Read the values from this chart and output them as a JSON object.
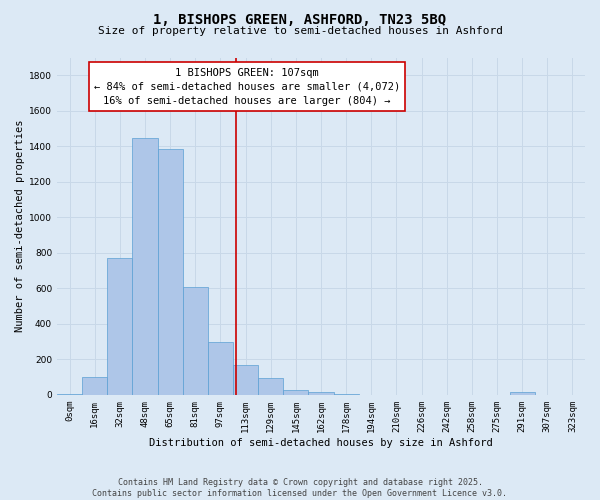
{
  "title": "1, BISHOPS GREEN, ASHFORD, TN23 5BQ",
  "subtitle": "Size of property relative to semi-detached houses in Ashford",
  "xlabel": "Distribution of semi-detached houses by size in Ashford",
  "ylabel": "Number of semi-detached properties",
  "categories": [
    "0sqm",
    "16sqm",
    "32sqm",
    "48sqm",
    "65sqm",
    "81sqm",
    "97sqm",
    "113sqm",
    "129sqm",
    "145sqm",
    "162sqm",
    "178sqm",
    "194sqm",
    "210sqm",
    "226sqm",
    "242sqm",
    "258sqm",
    "275sqm",
    "291sqm",
    "307sqm",
    "323sqm"
  ],
  "bar_values": [
    5,
    100,
    770,
    1445,
    1385,
    610,
    300,
    170,
    95,
    30,
    15,
    2,
    0,
    0,
    0,
    0,
    0,
    0,
    15,
    0,
    0
  ],
  "bar_color": "#aec6e8",
  "bar_edge_color": "#5a9fd4",
  "annotation_text": "1 BISHOPS GREEN: 107sqm\n← 84% of semi-detached houses are smaller (4,072)\n16% of semi-detached houses are larger (804) →",
  "vline_color": "#cc0000",
  "annotation_box_facecolor": "#ffffff",
  "annotation_box_edgecolor": "#cc0000",
  "ylim": [
    0,
    1900
  ],
  "yticks": [
    0,
    200,
    400,
    600,
    800,
    1000,
    1200,
    1400,
    1600,
    1800
  ],
  "grid_color": "#c8d8e8",
  "bg_color": "#dce9f5",
  "footer": "Contains HM Land Registry data © Crown copyright and database right 2025.\nContains public sector information licensed under the Open Government Licence v3.0.",
  "title_fontsize": 10,
  "subtitle_fontsize": 8,
  "axis_label_fontsize": 7.5,
  "tick_fontsize": 6.5,
  "annotation_fontsize": 7.5,
  "footer_fontsize": 6
}
